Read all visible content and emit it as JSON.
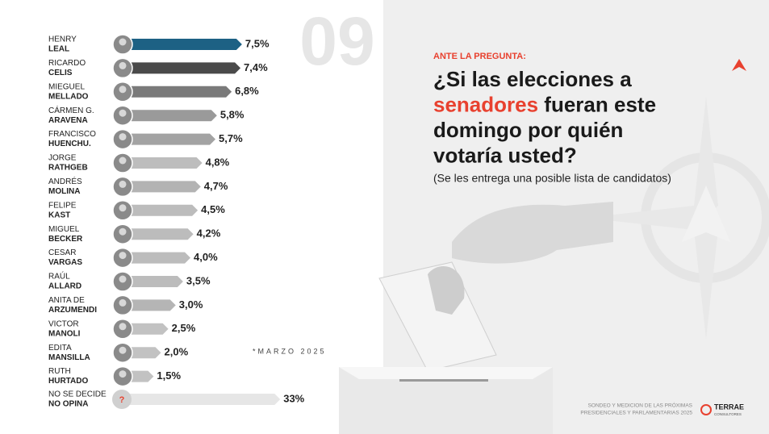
{
  "chart_data": [
    {
      "type": "hbar",
      "categories": [
        [
          "HENRY",
          "LEAL"
        ],
        [
          "RICARDO",
          "CELIS"
        ],
        [
          "MIEGUEL",
          "MELLADO"
        ],
        [
          "CÁRMEN G.",
          "ARAVENA"
        ],
        [
          "FRANCISCO",
          "HUENCHU."
        ],
        [
          "JORGE",
          "RATHGEB"
        ],
        [
          "ANDRÉS",
          "MOLINA"
        ],
        [
          "FELIPE",
          "KAST"
        ],
        [
          "MIGUEL",
          "BECKER"
        ],
        [
          "CESAR",
          "VARGAS"
        ],
        [
          "RAÚL",
          "ALLARD"
        ],
        [
          "ANITA DE",
          "ARZUMENDI"
        ],
        [
          "VICTOR",
          "MANOLI"
        ],
        [
          "EDITA",
          "MANSILLA"
        ],
        [
          "RUTH",
          "HURTADO"
        ]
      ],
      "values": [
        7.5,
        7.4,
        6.8,
        5.8,
        5.7,
        4.8,
        4.7,
        4.5,
        4.2,
        4.0,
        3.5,
        3.0,
        2.5,
        2.0,
        1.5
      ],
      "value_labels": [
        "7,5%",
        "7,4%",
        "6,8%",
        "5,8%",
        "5,7%",
        "4,8%",
        "4,7%",
        "4,5%",
        "4,2%",
        "4,0%",
        "3,5%",
        "3,0%",
        "2,5%",
        "2,0%",
        "1,5%"
      ],
      "colors": [
        "#1d6184",
        "#4a4a4a",
        "#7a7a7a",
        "#9a9a9a",
        "#a3a3a3",
        "#bdbdbd",
        "#b3b3b3",
        "#bcbcbc",
        "#bcbcbc",
        "#bcbcbc",
        "#bcbcbc",
        "#b5b5b5",
        "#c2c2c2",
        "#c2c2c2",
        "#c2c2c2"
      ],
      "xlim": [
        0,
        8
      ]
    },
    {
      "type": "hbar",
      "categories": [
        [
          "NO SE DECIDE",
          "NO OPINA"
        ]
      ],
      "values": [
        33
      ],
      "value_labels": [
        "33%"
      ],
      "colors": [
        "#e6e6e6"
      ],
      "xlim": [
        0,
        35
      ]
    }
  ],
  "slide": {
    "number": "09",
    "kicker": "ANTE LA PREGUNTA:",
    "question": [
      [
        "¿Si las elecciones a"
      ],
      [
        "senadores",
        " fueran este"
      ],
      [
        "domingo por quién"
      ],
      [
        "votaría usted?"
      ]
    ],
    "note": "(Se les entrega una posible lista de candidatos)",
    "date": "*MARZO 2025",
    "footer": [
      "SONDEO Y MEDICION DE LAS PRÓXIMAS",
      "PRESIDENCIALES Y PARLAMENTARIAS 2025"
    ],
    "brand": "TERRAE",
    "brand_sub": "CONSULTORES",
    "avatar_unknown": "?"
  }
}
